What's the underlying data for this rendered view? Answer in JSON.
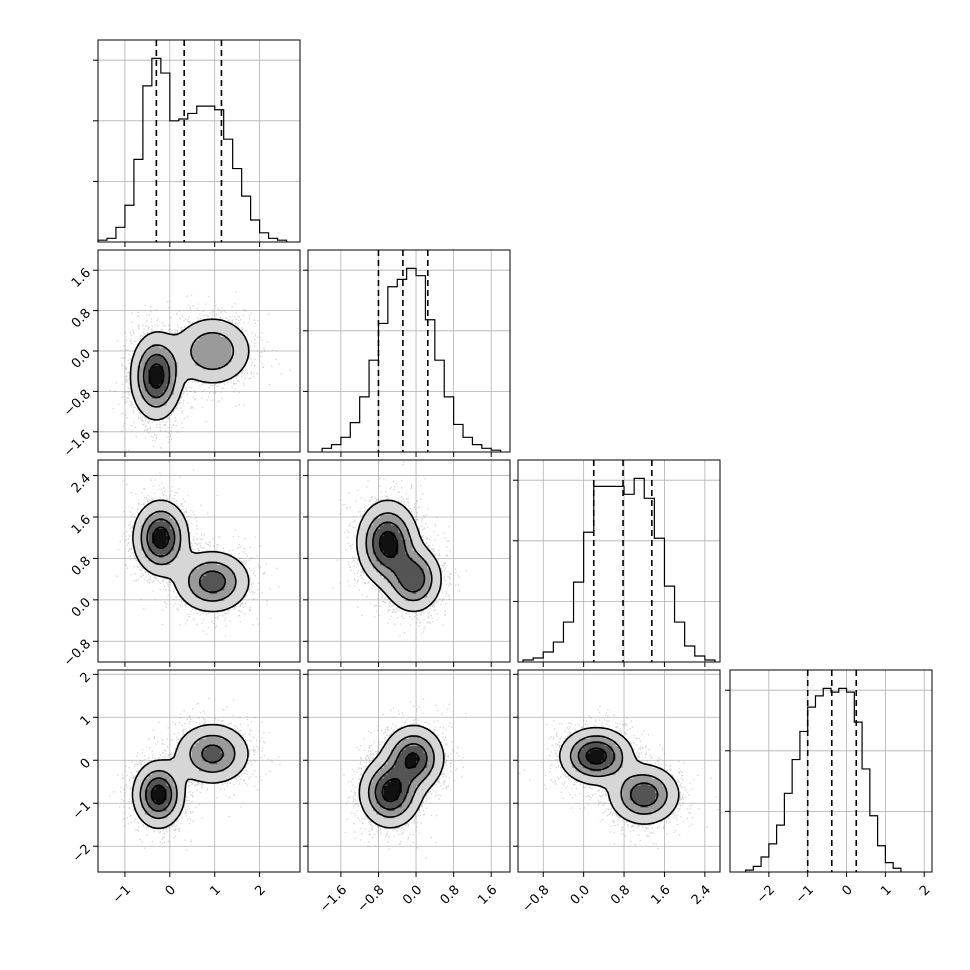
{
  "chart_data": {
    "type": "corner",
    "n_params": 4,
    "quantile_lines_style": "dashed",
    "grid": true,
    "x_axes": [
      {
        "range": [
          -1.6,
          2.9
        ],
        "ticks": [
          -1,
          0,
          1,
          2
        ],
        "tick_labels": [
          "−1",
          "0",
          "1",
          "2"
        ]
      },
      {
        "range": [
          -2.3,
          2.0
        ],
        "ticks": [
          -1.6,
          -0.8,
          0.0,
          0.8,
          1.6
        ],
        "tick_labels": [
          "−1.6",
          "−0.8",
          "0.0",
          "0.8",
          "1.6"
        ]
      },
      {
        "range": [
          -1.3,
          2.7
        ],
        "ticks": [
          -0.8,
          0.0,
          0.8,
          1.6,
          2.4
        ],
        "tick_labels": [
          "−0.8",
          "0.0",
          "0.8",
          "1.6",
          "2.4"
        ]
      },
      {
        "range": [
          -3.0,
          2.2
        ],
        "ticks": [
          -2,
          -1,
          0,
          1,
          2
        ],
        "tick_labels": [
          "−2",
          "−1",
          "0",
          "1",
          "2"
        ]
      }
    ],
    "y_axes": [
      null,
      {
        "range": [
          -2.0,
          2.0
        ],
        "ticks": [
          -1.6,
          -0.8,
          0.0,
          0.8,
          1.6
        ],
        "tick_labels": [
          "−1.6",
          "−0.8",
          "0.0",
          "0.8",
          "1.6"
        ]
      },
      {
        "range": [
          -1.2,
          2.7
        ],
        "ticks": [
          -0.8,
          0.0,
          0.8,
          1.6,
          2.4
        ],
        "tick_labels": [
          "−0.8",
          "0.0",
          "0.8",
          "1.6",
          "2.4"
        ]
      },
      {
        "range": [
          -2.6,
          2.1
        ],
        "ticks": [
          -2,
          -1,
          0,
          1,
          2
        ],
        "tick_labels": [
          "−2",
          "−1",
          "0",
          "1",
          "2"
        ]
      }
    ],
    "histograms": [
      {
        "param": 0,
        "bin_edges": [
          -1.6,
          -1.4,
          -1.2,
          -1.0,
          -0.8,
          -0.6,
          -0.4,
          -0.2,
          0.0,
          0.2,
          0.4,
          0.6,
          0.8,
          1.0,
          1.2,
          1.4,
          1.6,
          1.8,
          2.0,
          2.2,
          2.4,
          2.6
        ],
        "counts": [
          0.01,
          0.02,
          0.08,
          0.2,
          0.45,
          0.85,
          1.0,
          0.92,
          0.66,
          0.67,
          0.7,
          0.74,
          0.74,
          0.72,
          0.56,
          0.4,
          0.25,
          0.12,
          0.05,
          0.02,
          0.01
        ],
        "quantiles": [
          -0.3,
          0.32,
          1.15
        ]
      },
      {
        "param": 1,
        "bin_edges": [
          -2.0,
          -1.8,
          -1.6,
          -1.4,
          -1.2,
          -1.0,
          -0.8,
          -0.6,
          -0.4,
          -0.2,
          0.0,
          0.2,
          0.4,
          0.6,
          0.8,
          1.0,
          1.2,
          1.4,
          1.6,
          1.8
        ],
        "counts": [
          0.02,
          0.04,
          0.08,
          0.16,
          0.3,
          0.5,
          0.7,
          0.9,
          0.94,
          1.0,
          0.96,
          0.72,
          0.5,
          0.3,
          0.15,
          0.08,
          0.04,
          0.02,
          0.01
        ],
        "quantiles": [
          -0.8,
          -0.28,
          0.25
        ]
      },
      {
        "param": 2,
        "bin_edges": [
          -1.2,
          -1.0,
          -0.8,
          -0.6,
          -0.4,
          -0.2,
          0.0,
          0.2,
          0.4,
          0.6,
          0.8,
          1.0,
          1.2,
          1.4,
          1.6,
          1.8,
          2.0,
          2.2,
          2.4,
          2.6
        ],
        "counts": [
          0.01,
          0.02,
          0.05,
          0.1,
          0.2,
          0.4,
          0.65,
          0.88,
          0.88,
          0.88,
          0.84,
          0.92,
          0.82,
          0.62,
          0.38,
          0.2,
          0.08,
          0.03,
          0.01
        ],
        "quantiles": [
          0.2,
          0.78,
          1.35
        ]
      },
      {
        "param": 3,
        "bin_edges": [
          -2.6,
          -2.4,
          -2.2,
          -2.0,
          -1.8,
          -1.6,
          -1.4,
          -1.2,
          -1.0,
          -0.8,
          -0.6,
          -0.4,
          -0.2,
          0.0,
          0.2,
          0.4,
          0.6,
          0.8,
          1.0,
          1.2,
          1.4
        ],
        "counts": [
          0.01,
          0.03,
          0.08,
          0.15,
          0.25,
          0.42,
          0.6,
          0.75,
          0.88,
          0.94,
          0.98,
          0.96,
          0.98,
          0.96,
          0.8,
          0.55,
          0.3,
          0.14,
          0.05,
          0.02
        ],
        "quantiles": [
          -1.0,
          -0.38,
          0.25
        ]
      }
    ],
    "pairs": [
      {
        "row": 1,
        "col": 0,
        "modes": [
          {
            "x": -0.3,
            "y": -0.5,
            "sx": 0.28,
            "sy": 0.42,
            "w": 1.0
          },
          {
            "x": 0.95,
            "y": 0.0,
            "sx": 0.45,
            "sy": 0.35,
            "w": 0.6
          }
        ]
      },
      {
        "row": 2,
        "col": 0,
        "modes": [
          {
            "x": -0.2,
            "y": 1.2,
            "sx": 0.3,
            "sy": 0.35,
            "w": 1.0
          },
          {
            "x": 0.95,
            "y": 0.35,
            "sx": 0.42,
            "sy": 0.3,
            "w": 0.75
          }
        ]
      },
      {
        "row": 2,
        "col": 1,
        "modes": [
          {
            "x": -0.6,
            "y": 1.1,
            "sx": 0.32,
            "sy": 0.4,
            "w": 1.0
          },
          {
            "x": -0.05,
            "y": 0.4,
            "sx": 0.3,
            "sy": 0.32,
            "w": 0.8
          }
        ]
      },
      {
        "row": 3,
        "col": 0,
        "modes": [
          {
            "x": -0.25,
            "y": -0.8,
            "sx": 0.28,
            "sy": 0.38,
            "w": 1.0
          },
          {
            "x": 0.95,
            "y": 0.15,
            "sx": 0.42,
            "sy": 0.36,
            "w": 0.7
          }
        ]
      },
      {
        "row": 3,
        "col": 1,
        "modes": [
          {
            "x": -0.55,
            "y": -0.75,
            "sx": 0.32,
            "sy": 0.4,
            "w": 1.0
          },
          {
            "x": -0.05,
            "y": 0.05,
            "sx": 0.32,
            "sy": 0.38,
            "w": 0.9
          }
        ]
      },
      {
        "row": 3,
        "col": 2,
        "modes": [
          {
            "x": 0.25,
            "y": 0.1,
            "sx": 0.35,
            "sy": 0.32,
            "w": 1.0
          },
          {
            "x": 1.2,
            "y": -0.8,
            "sx": 0.35,
            "sy": 0.35,
            "w": 0.8
          }
        ]
      }
    ],
    "contour_levels": [
      0.12,
      0.35,
      0.6,
      0.85
    ]
  }
}
